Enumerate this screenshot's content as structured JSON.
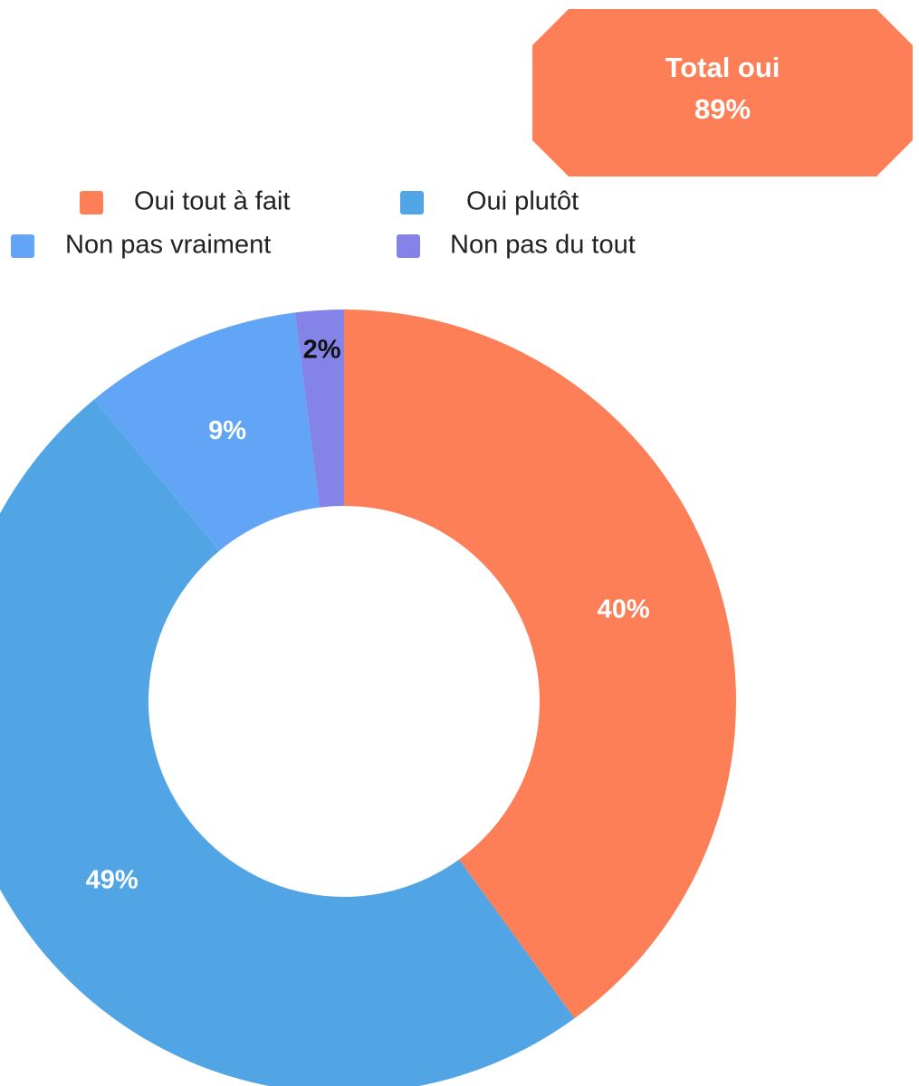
{
  "chart_data": {
    "type": "donut",
    "categories": [
      "Oui tout à fait",
      "Oui plutôt",
      "Non pas vraiment",
      "Non pas du tout"
    ],
    "values": [
      40,
      49,
      9,
      2
    ],
    "value_labels": [
      "40%",
      "49%",
      "9%",
      "2%"
    ],
    "colors": [
      "#fc7f58",
      "#51a5e5",
      "#62a5f7",
      "#8383e8"
    ],
    "total": {
      "label": "Total oui",
      "value": 89,
      "value_label": "89%",
      "color": "#fc7f58"
    }
  }
}
